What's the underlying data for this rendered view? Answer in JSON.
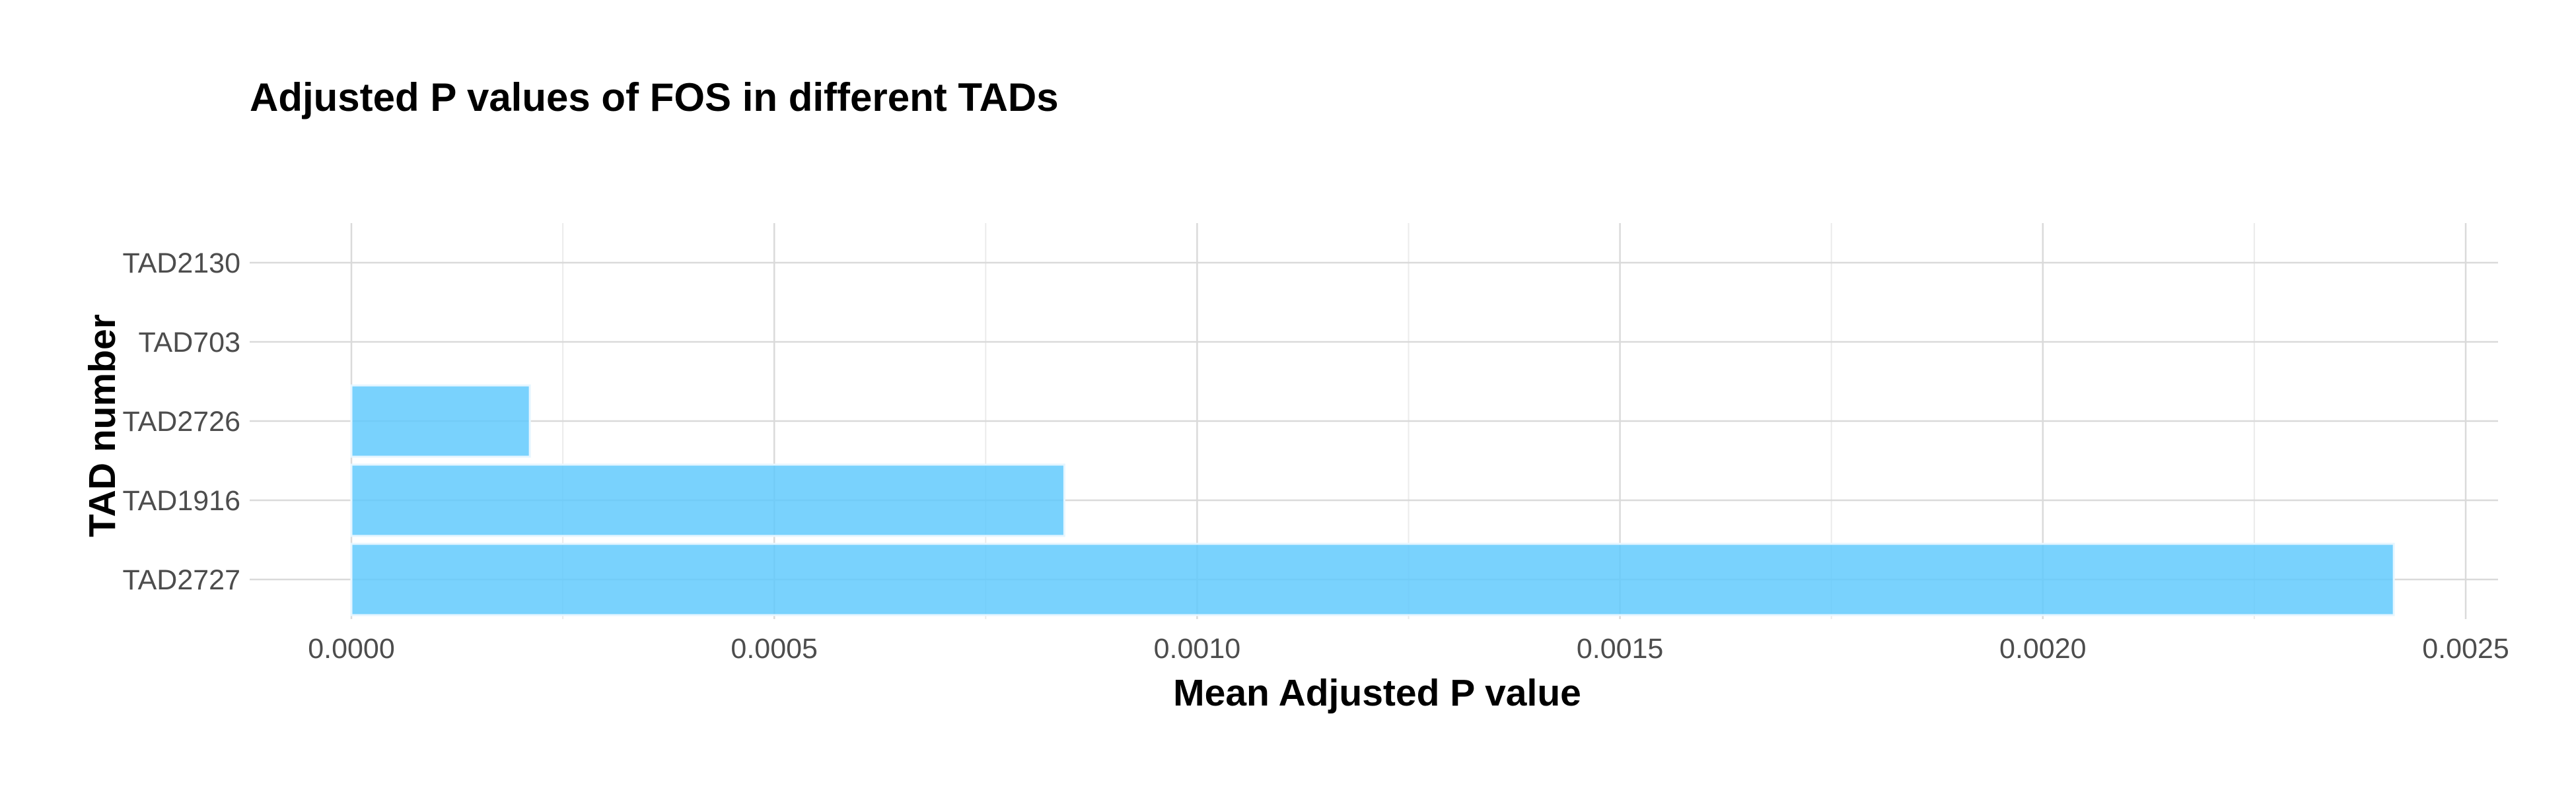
{
  "chart_data": {
    "type": "bar",
    "orientation": "horizontal",
    "title": "Adjusted P values of FOS in different TADs",
    "xlabel": "Mean Adjusted P value",
    "ylabel": "TAD number",
    "categories": [
      "TAD2727",
      "TAD1916",
      "TAD2726",
      "TAD703",
      "TAD2130"
    ],
    "values": [
      0.002415,
      0.000843,
      0.000211,
      0.0,
      0.0
    ],
    "xlim": [
      0,
      0.0025
    ],
    "x_ticks": [
      0.0,
      0.0005,
      0.001,
      0.0015,
      0.002,
      0.0025
    ],
    "x_tick_labels": [
      "0.0000",
      "0.0005",
      "0.0010",
      "0.0015",
      "0.0020",
      "0.0025"
    ],
    "grid": true,
    "bar_color": "#5bc8fc"
  }
}
